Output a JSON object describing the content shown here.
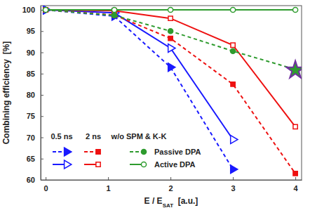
{
  "chart_data": {
    "type": "line",
    "xlabel": [
      "E / E",
      "SAT",
      "  [a.u.]"
    ],
    "ylabel": "Combining efficiency  [%]",
    "x": [
      0,
      1.1,
      2,
      3,
      4
    ],
    "xlim": [
      -0.08,
      4.1
    ],
    "xticks": [
      0,
      1,
      2,
      3,
      4
    ],
    "ylim": [
      60,
      101
    ],
    "yticks": [
      60,
      65,
      70,
      75,
      80,
      85,
      90,
      95,
      100
    ],
    "grid": false,
    "legend_columns": [
      "0.5 ns",
      "2 ns",
      "w/o SPM & K-K"
    ],
    "legend_rows": [
      "Passive DPA",
      "Active DPA"
    ],
    "series": [
      {
        "column": 0,
        "row": 0,
        "color": "#1a1aff",
        "marker": "triangle",
        "line_style": "dashed",
        "values": [
          100,
          98.5,
          86.5,
          62.5,
          null
        ]
      },
      {
        "column": 0,
        "row": 1,
        "color": "#1a1aff",
        "marker": "triangle-open",
        "line_style": "solid",
        "values": [
          100,
          99.3,
          91,
          69.5,
          null
        ]
      },
      {
        "column": 1,
        "row": 0,
        "color": "#ee1111",
        "marker": "square",
        "line_style": "dashed",
        "values": [
          100,
          98.8,
          93.3,
          82.5,
          61.5
        ]
      },
      {
        "column": 1,
        "row": 1,
        "color": "#ee1111",
        "marker": "square-open",
        "line_style": "solid",
        "values": [
          100,
          99.8,
          98,
          91.7,
          72.5
        ]
      },
      {
        "column": 2,
        "row": 0,
        "color": "#2e9b2e",
        "marker": "circle",
        "line_style": "dashed",
        "values": [
          100,
          98.7,
          95,
          90.3,
          86
        ]
      },
      {
        "column": 2,
        "row": 1,
        "color": "#2e9b2e",
        "marker": "circle-open",
        "line_style": "solid",
        "values": [
          100,
          100,
          100,
          100,
          100
        ]
      }
    ],
    "annotations": [
      {
        "x": 4,
        "y": 85.8,
        "marker": "star",
        "color": "#7030a0"
      }
    ]
  }
}
